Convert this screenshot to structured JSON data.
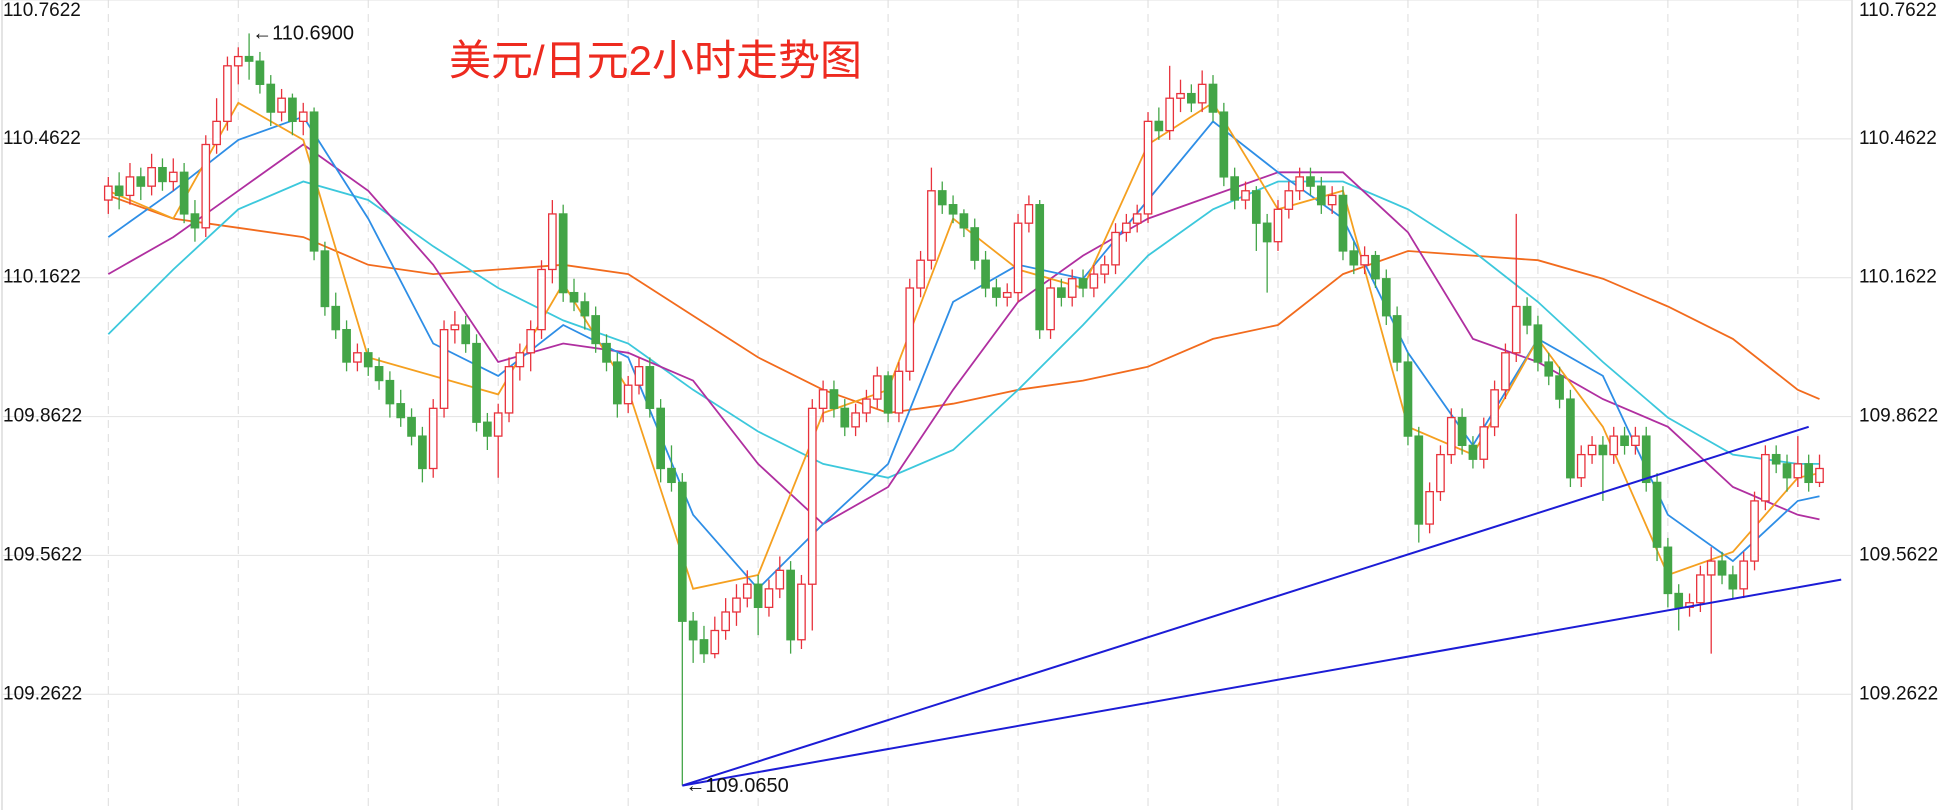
{
  "chart_data": {
    "type": "candlestick",
    "title": "美元/日元2小时走势图",
    "title_color": "#ee2a1f",
    "up_color": "#e8323c",
    "down_color": "#43a547",
    "xlim": [
      -10,
      161
    ],
    "ylim": [
      109.0122,
      110.7622
    ],
    "xticks": [
      0,
      12,
      24,
      36,
      48,
      60,
      72,
      84,
      96,
      108,
      120,
      132,
      144,
      156
    ],
    "yticks": [
      109.2622,
      109.5622,
      109.8622,
      110.1622,
      110.4622,
      110.7622
    ],
    "grid": true,
    "candles": [
      [
        110.33,
        110.38,
        110.3,
        110.36
      ],
      [
        110.36,
        110.39,
        110.31,
        110.34
      ],
      [
        110.34,
        110.41,
        110.32,
        110.38
      ],
      [
        110.38,
        110.4,
        110.33,
        110.36
      ],
      [
        110.36,
        110.43,
        110.34,
        110.4
      ],
      [
        110.4,
        110.42,
        110.35,
        110.37
      ],
      [
        110.37,
        110.42,
        110.35,
        110.39
      ],
      [
        110.39,
        110.41,
        110.28,
        110.3
      ],
      [
        110.3,
        110.33,
        110.24,
        110.27
      ],
      [
        110.27,
        110.47,
        110.25,
        110.45
      ],
      [
        110.45,
        110.55,
        110.43,
        110.5
      ],
      [
        110.5,
        110.64,
        110.48,
        110.62
      ],
      [
        110.62,
        110.66,
        110.58,
        110.64
      ],
      [
        110.64,
        110.69,
        110.59,
        110.63
      ],
      [
        110.63,
        110.65,
        110.56,
        110.58
      ],
      [
        110.58,
        110.6,
        110.49,
        110.52
      ],
      [
        110.52,
        110.57,
        110.5,
        110.55
      ],
      [
        110.55,
        110.56,
        110.47,
        110.5
      ],
      [
        110.5,
        110.54,
        110.47,
        110.52
      ],
      [
        110.52,
        110.53,
        110.2,
        110.22
      ],
      [
        110.22,
        110.24,
        110.08,
        110.1
      ],
      [
        110.1,
        110.13,
        110.03,
        110.05
      ],
      [
        110.05,
        110.07,
        109.96,
        109.98
      ],
      [
        109.98,
        110.02,
        109.96,
        110.0
      ],
      [
        110.0,
        110.01,
        109.95,
        109.97
      ],
      [
        109.97,
        109.99,
        109.92,
        109.94
      ],
      [
        109.94,
        109.96,
        109.86,
        109.89
      ],
      [
        109.89,
        109.92,
        109.84,
        109.86
      ],
      [
        109.86,
        109.88,
        109.8,
        109.82
      ],
      [
        109.82,
        109.84,
        109.72,
        109.75
      ],
      [
        109.75,
        109.9,
        109.73,
        109.88
      ],
      [
        109.88,
        110.07,
        109.86,
        110.05
      ],
      [
        110.05,
        110.09,
        110.02,
        110.06
      ],
      [
        110.06,
        110.08,
        110.0,
        110.02
      ],
      [
        110.02,
        110.04,
        109.83,
        109.85
      ],
      [
        109.85,
        109.87,
        109.79,
        109.82
      ],
      [
        109.82,
        109.89,
        109.73,
        109.87
      ],
      [
        109.87,
        109.99,
        109.85,
        109.97
      ],
      [
        109.97,
        110.02,
        109.94,
        110.0
      ],
      [
        110.0,
        110.07,
        109.96,
        110.05
      ],
      [
        110.05,
        110.2,
        110.03,
        110.18
      ],
      [
        110.18,
        110.33,
        110.15,
        110.3
      ],
      [
        110.3,
        110.32,
        110.11,
        110.13
      ],
      [
        110.13,
        110.16,
        110.09,
        110.11
      ],
      [
        110.11,
        110.13,
        110.05,
        110.08
      ],
      [
        110.08,
        110.1,
        110.0,
        110.02
      ],
      [
        110.02,
        110.04,
        109.96,
        109.98
      ],
      [
        109.98,
        110.0,
        109.86,
        109.89
      ],
      [
        109.89,
        109.95,
        109.87,
        109.93
      ],
      [
        109.93,
        109.99,
        109.91,
        109.97
      ],
      [
        109.97,
        109.99,
        109.86,
        109.88
      ],
      [
        109.88,
        109.9,
        109.72,
        109.75
      ],
      [
        109.75,
        109.8,
        109.7,
        109.72
      ],
      [
        109.72,
        109.74,
        109.065,
        109.42
      ],
      [
        109.42,
        109.44,
        109.33,
        109.38
      ],
      [
        109.38,
        109.41,
        109.33,
        109.35
      ],
      [
        109.35,
        109.43,
        109.34,
        109.4
      ],
      [
        109.4,
        109.47,
        109.38,
        109.44
      ],
      [
        109.44,
        109.5,
        109.41,
        109.47
      ],
      [
        109.47,
        109.53,
        109.45,
        109.5
      ],
      [
        109.5,
        109.52,
        109.39,
        109.45
      ],
      [
        109.45,
        109.51,
        109.43,
        109.49
      ],
      [
        109.49,
        109.56,
        109.47,
        109.53
      ],
      [
        109.53,
        109.55,
        109.35,
        109.38
      ],
      [
        109.38,
        109.52,
        109.36,
        109.5
      ],
      [
        109.5,
        109.9,
        109.4,
        109.88
      ],
      [
        109.88,
        109.94,
        109.85,
        109.92
      ],
      [
        109.92,
        109.94,
        109.86,
        109.88
      ],
      [
        109.88,
        109.9,
        109.82,
        109.84
      ],
      [
        109.84,
        109.89,
        109.82,
        109.87
      ],
      [
        109.87,
        109.92,
        109.85,
        109.9
      ],
      [
        109.9,
        109.97,
        109.88,
        109.95
      ],
      [
        109.95,
        109.96,
        109.85,
        109.87
      ],
      [
        109.87,
        109.98,
        109.85,
        109.96
      ],
      [
        109.96,
        110.16,
        109.94,
        110.14
      ],
      [
        110.14,
        110.22,
        110.12,
        110.2
      ],
      [
        110.2,
        110.4,
        110.18,
        110.35
      ],
      [
        110.35,
        110.37,
        110.3,
        110.32
      ],
      [
        110.32,
        110.34,
        110.28,
        110.3
      ],
      [
        110.3,
        110.31,
        110.25,
        110.27
      ],
      [
        110.27,
        110.29,
        110.18,
        110.2
      ],
      [
        110.2,
        110.22,
        110.12,
        110.14
      ],
      [
        110.14,
        110.16,
        110.1,
        110.12
      ],
      [
        110.12,
        110.15,
        110.1,
        110.13
      ],
      [
        110.13,
        110.3,
        110.11,
        110.28
      ],
      [
        110.28,
        110.34,
        110.26,
        110.32
      ],
      [
        110.32,
        110.33,
        110.03,
        110.05
      ],
      [
        110.05,
        110.16,
        110.03,
        110.14
      ],
      [
        110.14,
        110.16,
        110.1,
        110.12
      ],
      [
        110.12,
        110.18,
        110.1,
        110.16
      ],
      [
        110.16,
        110.18,
        110.12,
        110.14
      ],
      [
        110.14,
        110.19,
        110.12,
        110.17
      ],
      [
        110.17,
        110.21,
        110.15,
        110.19
      ],
      [
        110.19,
        110.28,
        110.17,
        110.26
      ],
      [
        110.26,
        110.3,
        110.24,
        110.28
      ],
      [
        110.28,
        110.32,
        110.26,
        110.3
      ],
      [
        110.3,
        110.52,
        110.28,
        110.5
      ],
      [
        110.5,
        110.53,
        110.46,
        110.48
      ],
      [
        110.48,
        110.62,
        110.46,
        110.55
      ],
      [
        110.55,
        110.59,
        110.52,
        110.56
      ],
      [
        110.56,
        110.58,
        110.52,
        110.54
      ],
      [
        110.54,
        110.61,
        110.52,
        110.58
      ],
      [
        110.58,
        110.6,
        110.5,
        110.52
      ],
      [
        110.52,
        110.54,
        110.36,
        110.38
      ],
      [
        110.38,
        110.4,
        110.31,
        110.33
      ],
      [
        110.33,
        110.37,
        110.31,
        110.35
      ],
      [
        110.35,
        110.36,
        110.22,
        110.28
      ],
      [
        110.28,
        110.3,
        110.13,
        110.24
      ],
      [
        110.24,
        110.33,
        110.22,
        110.31
      ],
      [
        110.31,
        110.37,
        110.29,
        110.35
      ],
      [
        110.35,
        110.4,
        110.33,
        110.38
      ],
      [
        110.38,
        110.4,
        110.34,
        110.36
      ],
      [
        110.36,
        110.38,
        110.3,
        110.32
      ],
      [
        110.32,
        110.36,
        110.3,
        110.34
      ],
      [
        110.34,
        110.36,
        110.2,
        110.22
      ],
      [
        110.22,
        110.24,
        110.17,
        110.19
      ],
      [
        110.19,
        110.23,
        110.17,
        110.21
      ],
      [
        110.21,
        110.22,
        110.14,
        110.16
      ],
      [
        110.16,
        110.18,
        110.06,
        110.08
      ],
      [
        110.08,
        110.1,
        109.96,
        109.98
      ],
      [
        109.98,
        110.0,
        109.8,
        109.82
      ],
      [
        109.82,
        109.84,
        109.59,
        109.63
      ],
      [
        109.63,
        109.72,
        109.61,
        109.7
      ],
      [
        109.7,
        109.8,
        109.68,
        109.78
      ],
      [
        109.78,
        109.88,
        109.76,
        109.86
      ],
      [
        109.86,
        109.88,
        109.78,
        109.8
      ],
      [
        109.8,
        109.82,
        109.75,
        109.77
      ],
      [
        109.77,
        109.86,
        109.75,
        109.84
      ],
      [
        109.84,
        109.94,
        109.82,
        109.92
      ],
      [
        109.92,
        110.02,
        109.9,
        110.0
      ],
      [
        110.0,
        110.3,
        109.98,
        110.1
      ],
      [
        110.1,
        110.12,
        110.04,
        110.06
      ],
      [
        110.06,
        110.08,
        109.96,
        109.98
      ],
      [
        109.98,
        110.0,
        109.93,
        109.95
      ],
      [
        109.95,
        109.97,
        109.88,
        109.9
      ],
      [
        109.9,
        109.92,
        109.71,
        109.73
      ],
      [
        109.73,
        109.8,
        109.71,
        109.78
      ],
      [
        109.78,
        109.82,
        109.76,
        109.8
      ],
      [
        109.8,
        109.82,
        109.68,
        109.78
      ],
      [
        109.78,
        109.84,
        109.76,
        109.82
      ],
      [
        109.82,
        109.84,
        109.78,
        109.8
      ],
      [
        109.8,
        109.84,
        109.78,
        109.82
      ],
      [
        109.82,
        109.84,
        109.7,
        109.72
      ],
      [
        109.72,
        109.74,
        109.55,
        109.58
      ],
      [
        109.58,
        109.6,
        109.45,
        109.48
      ],
      [
        109.48,
        109.5,
        109.4,
        109.45
      ],
      [
        109.45,
        109.48,
        109.43,
        109.46
      ],
      [
        109.46,
        109.54,
        109.44,
        109.52
      ],
      [
        109.52,
        109.58,
        109.35,
        109.55
      ],
      [
        109.55,
        109.57,
        109.5,
        109.52
      ],
      [
        109.52,
        109.54,
        109.47,
        109.49
      ],
      [
        109.49,
        109.57,
        109.47,
        109.55
      ],
      [
        109.55,
        109.7,
        109.53,
        109.68
      ],
      [
        109.68,
        109.8,
        109.66,
        109.78
      ],
      [
        109.78,
        109.8,
        109.74,
        109.76
      ],
      [
        109.76,
        109.78,
        109.7,
        109.73
      ],
      [
        109.73,
        109.82,
        109.71,
        109.76
      ],
      [
        109.76,
        109.78,
        109.7,
        109.72
      ],
      [
        109.72,
        109.78,
        109.71,
        109.75
      ]
    ],
    "lines": [
      {
        "color": "#f26b1d",
        "x": [
          0,
          6,
          12,
          18,
          24,
          30,
          36,
          42,
          48,
          54,
          60,
          66,
          72,
          78,
          84,
          90,
          96,
          102,
          108,
          114,
          120,
          126,
          132,
          138,
          144,
          150,
          156,
          158
        ],
        "values": [
          110.34,
          110.29,
          110.27,
          110.25,
          110.19,
          110.17,
          110.18,
          110.19,
          110.17,
          110.08,
          109.99,
          109.92,
          109.87,
          109.89,
          109.92,
          109.94,
          109.97,
          110.03,
          110.06,
          110.17,
          110.22,
          110.21,
          110.2,
          110.16,
          110.1,
          110.03,
          109.92,
          109.9
        ]
      },
      {
        "color": "#3cc8dc",
        "x": [
          0,
          6,
          12,
          18,
          24,
          30,
          36,
          42,
          48,
          54,
          60,
          66,
          72,
          78,
          84,
          90,
          96,
          102,
          108,
          114,
          120,
          126,
          132,
          138,
          144,
          150,
          156,
          158
        ],
        "values": [
          110.04,
          110.18,
          110.31,
          110.37,
          110.33,
          110.23,
          110.14,
          110.07,
          110.02,
          109.92,
          109.83,
          109.76,
          109.73,
          109.79,
          109.92,
          110.06,
          110.21,
          110.31,
          110.37,
          110.37,
          110.31,
          110.22,
          110.11,
          109.98,
          109.86,
          109.78,
          109.76,
          109.76
        ]
      },
      {
        "color": "#b02fa0",
        "x": [
          0,
          6,
          12,
          18,
          24,
          30,
          36,
          42,
          48,
          54,
          60,
          66,
          72,
          78,
          84,
          90,
          96,
          102,
          108,
          114,
          120,
          126,
          132,
          138,
          144,
          150,
          156,
          158
        ],
        "values": [
          110.17,
          110.25,
          110.35,
          110.45,
          110.35,
          110.19,
          109.98,
          110.02,
          110.0,
          109.94,
          109.76,
          109.63,
          109.71,
          109.92,
          110.11,
          110.21,
          110.29,
          110.34,
          110.39,
          110.39,
          110.26,
          110.03,
          109.98,
          109.9,
          109.84,
          109.71,
          109.65,
          109.64
        ]
      },
      {
        "color": "#2e8ee6",
        "x": [
          0,
          6,
          12,
          18,
          24,
          30,
          36,
          42,
          48,
          54,
          60,
          66,
          72,
          78,
          84,
          90,
          96,
          102,
          108,
          114,
          120,
          126,
          132,
          138,
          144,
          150,
          156,
          158
        ],
        "values": [
          110.25,
          110.35,
          110.46,
          110.51,
          110.29,
          110.02,
          109.95,
          110.06,
          109.99,
          109.65,
          109.49,
          109.63,
          109.76,
          110.11,
          110.19,
          110.16,
          110.33,
          110.5,
          110.39,
          110.29,
          110.0,
          109.8,
          110.03,
          109.95,
          109.65,
          109.55,
          109.68,
          109.69
        ]
      },
      {
        "color": "#f5a020",
        "x": [
          0,
          6,
          12,
          18,
          24,
          30,
          36,
          42,
          48,
          54,
          60,
          66,
          72,
          78,
          84,
          90,
          96,
          102,
          108,
          114,
          120,
          126,
          132,
          138,
          144,
          150,
          156,
          158
        ],
        "values": [
          110.35,
          110.29,
          110.54,
          110.46,
          109.99,
          109.95,
          109.91,
          110.15,
          109.92,
          109.49,
          109.52,
          109.87,
          109.92,
          110.29,
          110.18,
          110.14,
          110.45,
          110.54,
          110.31,
          110.35,
          109.84,
          109.78,
          110.03,
          109.84,
          109.52,
          109.57,
          109.73,
          109.74
        ]
      }
    ],
    "trend_lines": [
      {
        "color": "#1c1cd6",
        "x": [
          53,
          157
        ],
        "values": [
          109.065,
          109.84
        ]
      },
      {
        "color": "#1c1cd6",
        "x": [
          53,
          160
        ],
        "values": [
          109.065,
          109.51
        ]
      }
    ],
    "annotations": [
      {
        "label": "←110.6900",
        "x": 13,
        "value": 110.69
      },
      {
        "label": "←109.0650",
        "x": 53,
        "value": 109.065
      }
    ]
  }
}
